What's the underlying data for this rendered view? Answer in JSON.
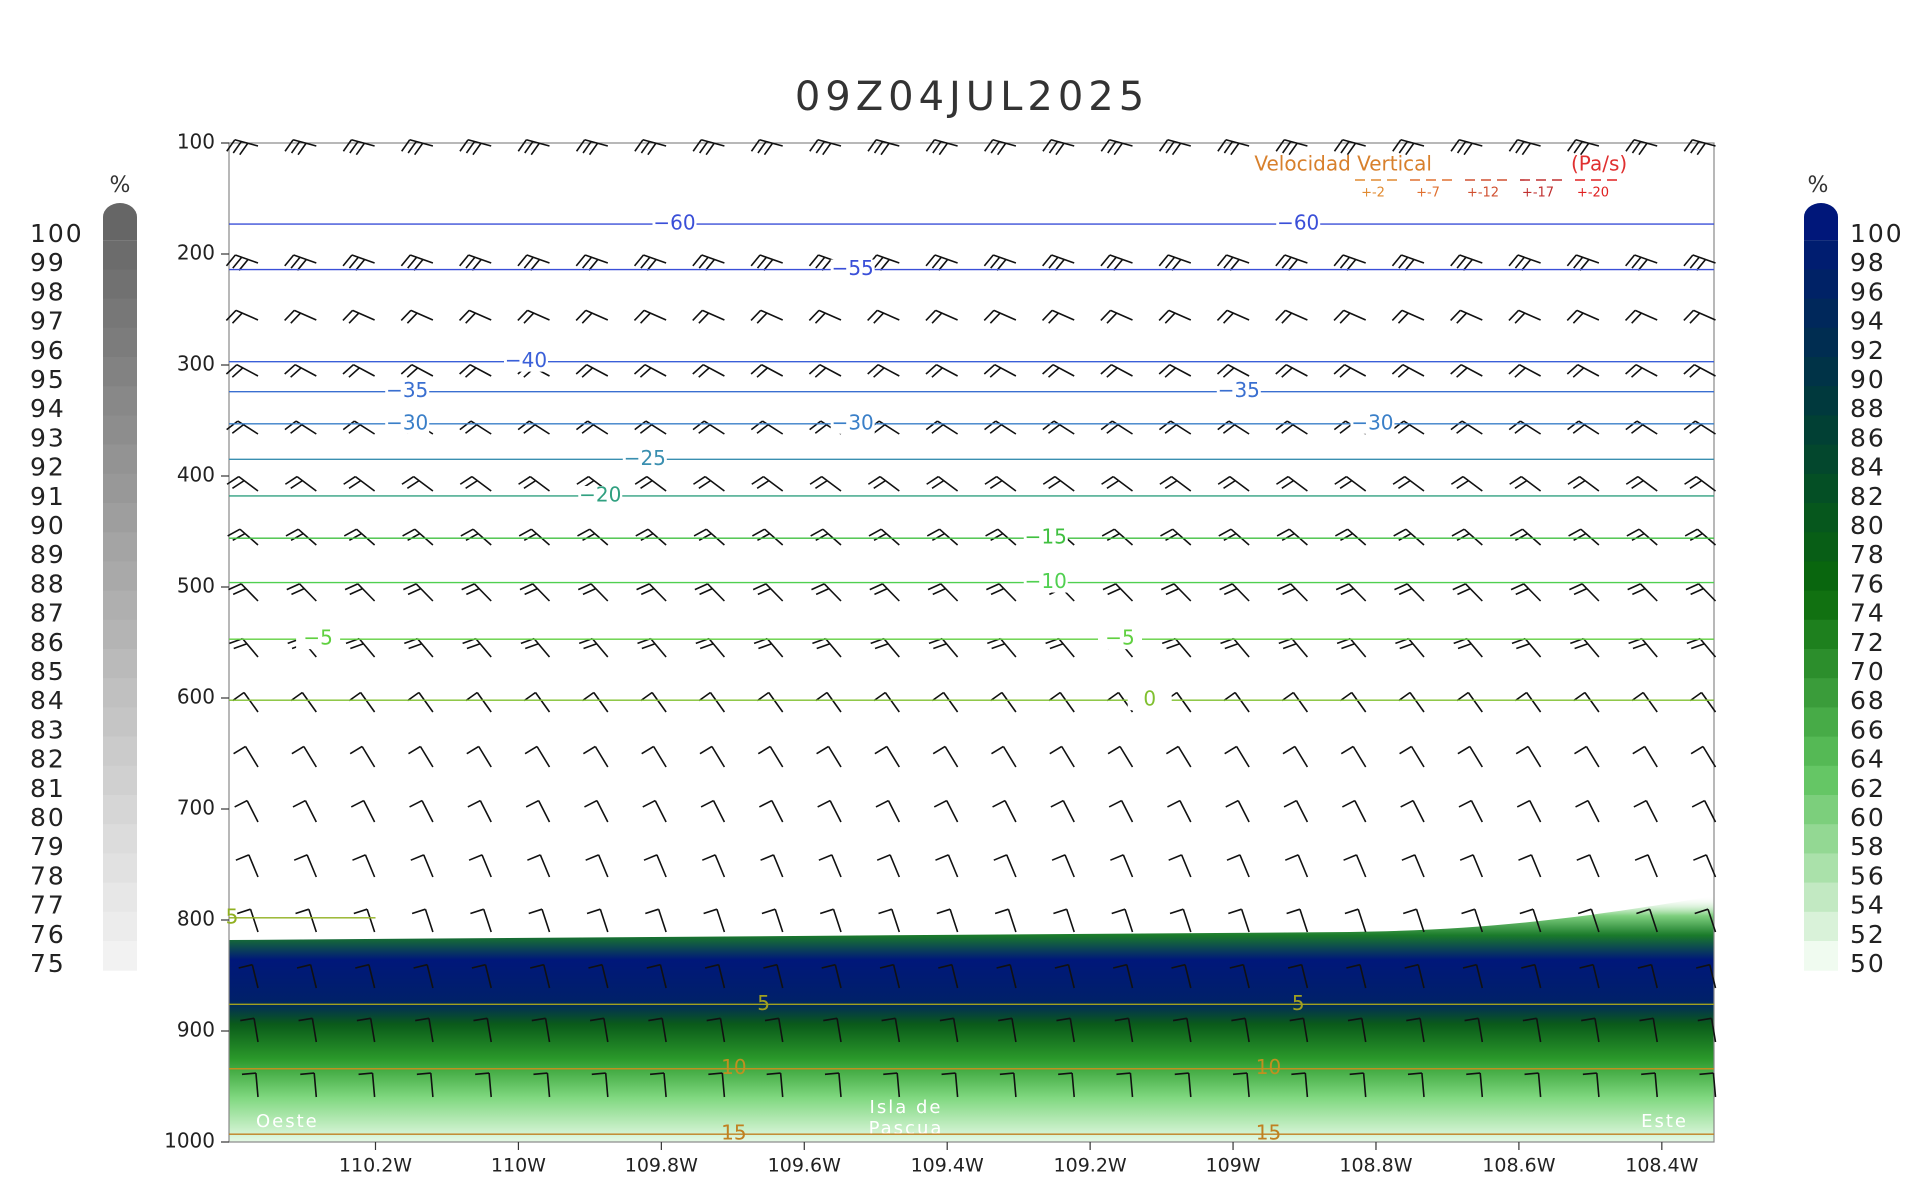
{
  "chart_data": {
    "type": "cross-section",
    "title": "09Z04JUL2025",
    "xlim": [
      -110.405,
      -108.327
    ],
    "xticks": [
      {
        "value": -110.2,
        "label": "110.2W"
      },
      {
        "value": -110,
        "label": "110W"
      },
      {
        "value": -109.8,
        "label": "109.8W"
      },
      {
        "value": -109.6,
        "label": "109.6W"
      },
      {
        "value": -109.4,
        "label": "109.4W"
      },
      {
        "value": -109.2,
        "label": "109.2W"
      },
      {
        "value": -109,
        "label": "109W"
      },
      {
        "value": -108.8,
        "label": "108.8W"
      },
      {
        "value": -108.6,
        "label": "108.6W"
      },
      {
        "value": -108.4,
        "label": "108.4W"
      }
    ],
    "ylim": [
      100,
      1000
    ],
    "y_inverted": true,
    "yticks": [
      100,
      200,
      300,
      400,
      500,
      600,
      700,
      800,
      900,
      1000
    ],
    "contours": [
      {
        "value": -60,
        "label": "−60",
        "pressure": 173,
        "color": "#3a4fd8"
      },
      {
        "value": -55,
        "label": "−55",
        "pressure": 214,
        "color": "#3a4fd8"
      },
      {
        "value": -40,
        "label": "−40",
        "pressure": 297,
        "color": "#3a5fd8"
      },
      {
        "value": -35,
        "label": "−35",
        "pressure": 324,
        "color": "#3a6fd0"
      },
      {
        "value": -30,
        "label": "−30",
        "pressure": 353,
        "color": "#3a7fc8"
      },
      {
        "value": -25,
        "label": "−25",
        "pressure": 385,
        "color": "#3a8fb0"
      },
      {
        "value": -20,
        "label": "−20",
        "pressure": 418,
        "color": "#30a080"
      },
      {
        "value": -15,
        "label": "−15",
        "pressure": 456,
        "color": "#40c040"
      },
      {
        "value": -10,
        "label": "−10",
        "pressure": 496,
        "color": "#50d050"
      },
      {
        "value": -5,
        "label": "−5",
        "pressure": 547,
        "color": "#60d040"
      },
      {
        "value": 0,
        "label": "0",
        "pressure": 602,
        "color": "#80c030"
      },
      {
        "value": 5,
        "label": "5",
        "pressure": 798,
        "color": "#90b020",
        "lon_end": -110.2
      },
      {
        "value": 5,
        "label": "5",
        "pressure": 876,
        "color": "#a0a020"
      },
      {
        "value": 10,
        "label": "10",
        "pressure": 934,
        "color": "#c09020"
      },
      {
        "value": 15,
        "label": "15",
        "pressure": 993,
        "color": "#c08020"
      }
    ],
    "annotations": [
      "Oeste",
      "Isla de",
      "Pascua",
      "Este"
    ],
    "legend": {
      "title": "Velocidad Vertical",
      "units": "(Pa/s)",
      "entries": [
        {
          "label": "+-2",
          "color": "#e08a30"
        },
        {
          "label": "+-7",
          "color": "#e07030"
        },
        {
          "label": "+-12",
          "color": "#d05030"
        },
        {
          "label": "+-17",
          "color": "#c03030"
        },
        {
          "label": "+-20",
          "color": "#e02020"
        }
      ]
    },
    "colorbars": [
      {
        "unit": "%",
        "levels": [
          100,
          99,
          98,
          97,
          96,
          95,
          94,
          93,
          92,
          91,
          90,
          89,
          88,
          87,
          86,
          85,
          84,
          83,
          82,
          81,
          80,
          79,
          78,
          77,
          76,
          75
        ],
        "colors": [
          "#666666",
          "#f2f2f2"
        ]
      },
      {
        "unit": "%",
        "levels": [
          100,
          98,
          96,
          94,
          92,
          90,
          88,
          86,
          84,
          82,
          80,
          78,
          76,
          74,
          72,
          70,
          68,
          66,
          64,
          62,
          60,
          58,
          56,
          54,
          52,
          50
        ],
        "colors": [
          "#00177a",
          "#003a3a",
          "#0a6a0a",
          "#5fc45f",
          "#f0fbf0"
        ]
      }
    ]
  }
}
